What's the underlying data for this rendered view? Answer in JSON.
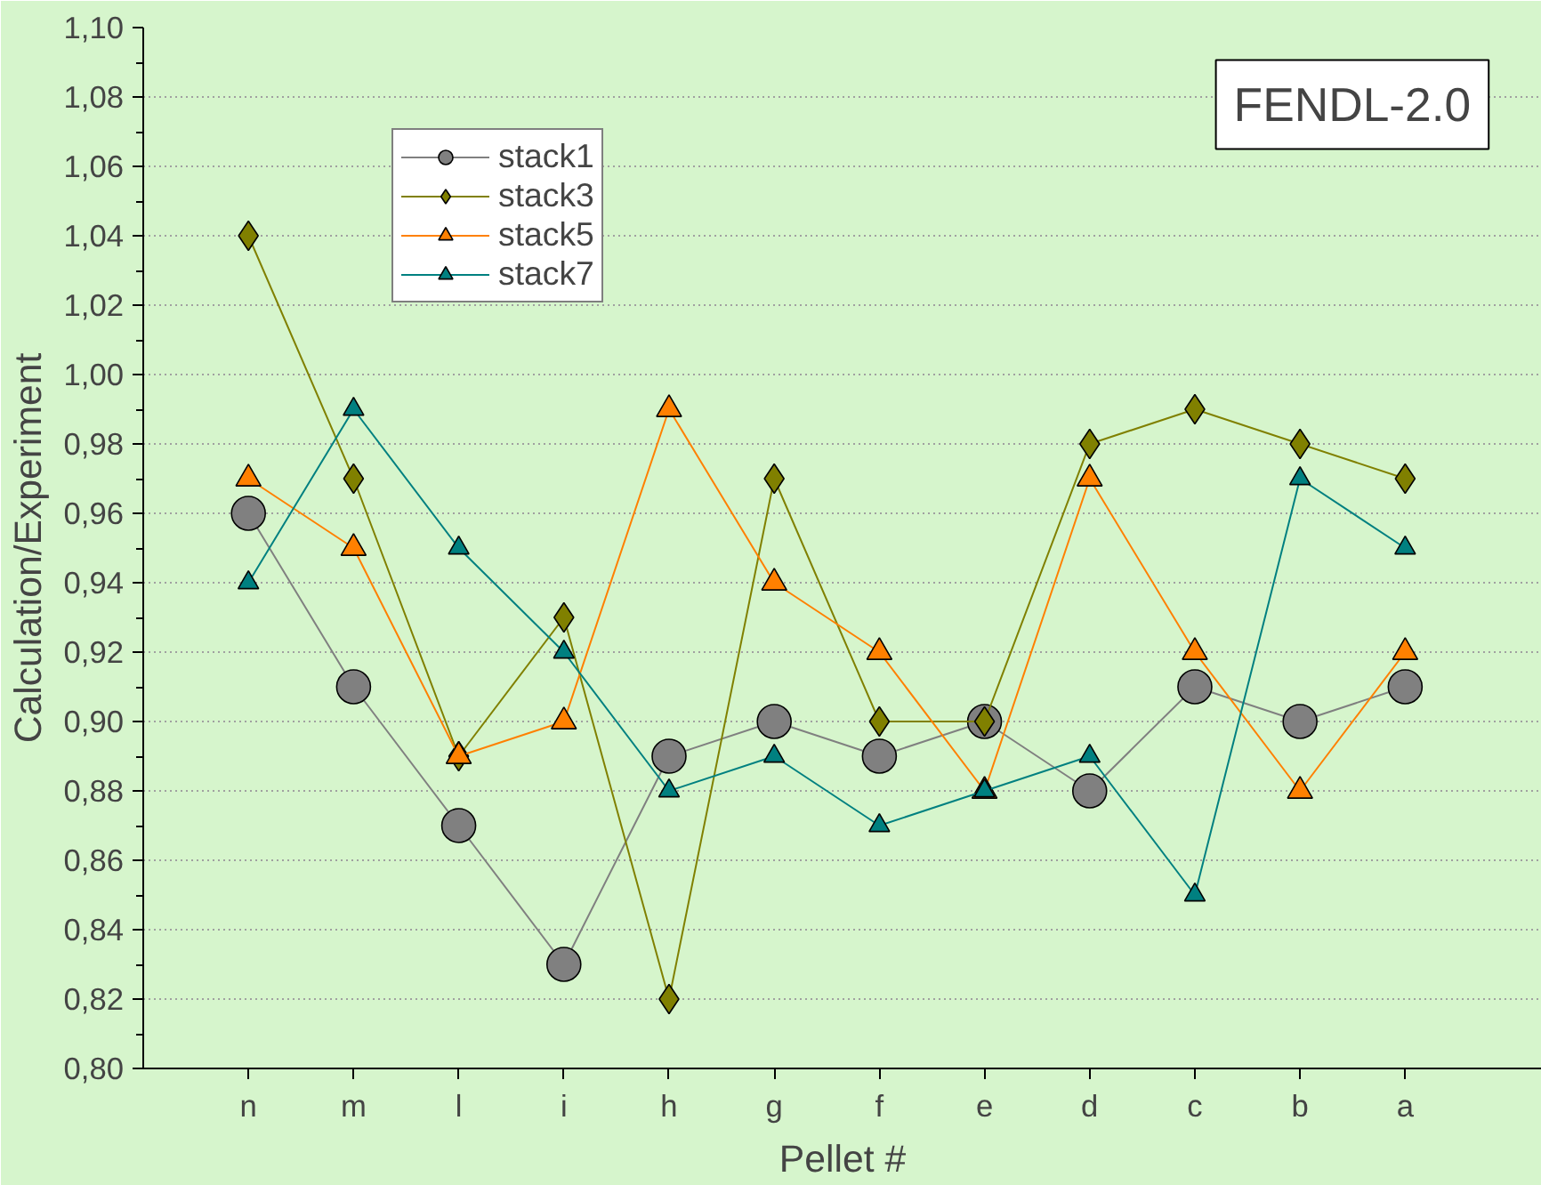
{
  "chart_data": {
    "type": "line",
    "xlabel": "Pellet #",
    "ylabel": "Calculation/Experiment",
    "annotations": [
      "FENDL-2.0"
    ],
    "categories": [
      "n",
      "m",
      "l",
      "i",
      "h",
      "g",
      "f",
      "e",
      "d",
      "c",
      "b",
      "a"
    ],
    "series": [
      {
        "name": "stack1",
        "color": "#808080",
        "marker": "circle",
        "values": [
          0.96,
          0.91,
          0.87,
          0.83,
          0.89,
          0.9,
          0.89,
          0.9,
          0.88,
          0.91,
          0.9,
          0.91
        ]
      },
      {
        "name": "stack3",
        "color": "#808000",
        "marker": "diamond",
        "values": [
          1.04,
          0.97,
          0.89,
          0.93,
          0.82,
          0.97,
          0.9,
          0.9,
          0.98,
          0.99,
          0.98,
          0.97
        ]
      },
      {
        "name": "stack5",
        "color": "#ff8000",
        "marker": "triangle",
        "values": [
          0.97,
          0.95,
          0.89,
          0.9,
          0.99,
          0.94,
          0.92,
          0.88,
          0.97,
          0.92,
          0.88,
          0.92
        ]
      },
      {
        "name": "stack7",
        "color": "#008080",
        "marker": "triangle",
        "values": [
          0.94,
          0.99,
          0.95,
          0.92,
          0.88,
          0.89,
          0.87,
          0.88,
          0.89,
          0.85,
          0.97,
          0.95
        ]
      }
    ],
    "ylim": [
      0.8,
      1.1
    ],
    "yticks": [
      {
        "value": 0.8,
        "label": "0,80"
      },
      {
        "value": 0.82,
        "label": "0,82"
      },
      {
        "value": 0.84,
        "label": "0,84"
      },
      {
        "value": 0.86,
        "label": "0,86"
      },
      {
        "value": 0.88,
        "label": "0,88"
      },
      {
        "value": 0.9,
        "label": "0,90"
      },
      {
        "value": 0.92,
        "label": "0,92"
      },
      {
        "value": 0.94,
        "label": "0,94"
      },
      {
        "value": 0.96,
        "label": "0,96"
      },
      {
        "value": 0.98,
        "label": "0,98"
      },
      {
        "value": 1.0,
        "label": "1,00"
      },
      {
        "value": 1.02,
        "label": "1,02"
      },
      {
        "value": 1.04,
        "label": "1,04"
      },
      {
        "value": 1.06,
        "label": "1,06"
      },
      {
        "value": 1.08,
        "label": "1,08"
      },
      {
        "value": 1.1,
        "label": "1,10"
      }
    ],
    "grid": "y",
    "legend": "top left",
    "line_style": "solid"
  }
}
